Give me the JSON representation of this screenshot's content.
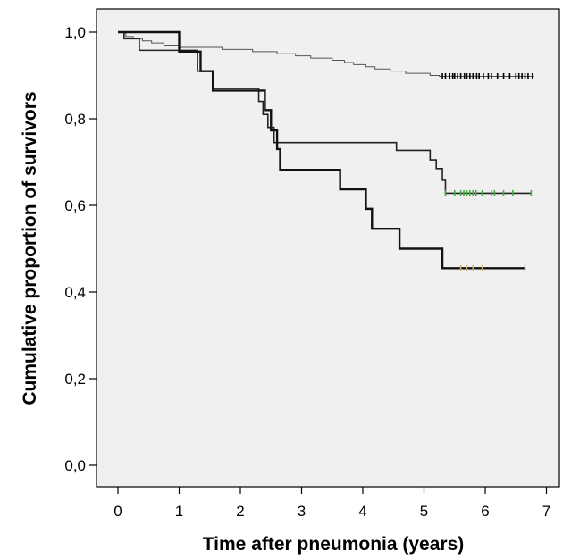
{
  "chart_data": {
    "type": "line",
    "title": "",
    "xlabel": "Time after pneumonia (years)",
    "ylabel": "Cumulative proportion of survivors",
    "xlim": [
      0,
      7
    ],
    "ylim": [
      0,
      1
    ],
    "x_ticks": [
      0,
      1,
      2,
      3,
      4,
      5,
      6,
      7
    ],
    "x_tick_labels": [
      "0",
      "1",
      "2",
      "3",
      "4",
      "5",
      "6",
      "7"
    ],
    "y_ticks": [
      0,
      0.2,
      0.4,
      0.6,
      0.8,
      1.0
    ],
    "y_tick_labels": [
      "0,0",
      "0,2",
      "0,4",
      "0,6",
      "0,8",
      "1,0"
    ],
    "grid": false,
    "background": "#f0f0f0",
    "series": [
      {
        "color": "#555555",
        "steps": [
          [
            0,
            1.0
          ],
          [
            0.13,
            0.99
          ],
          [
            0.25,
            0.985
          ],
          [
            0.4,
            0.98
          ],
          [
            0.55,
            0.975
          ],
          [
            0.75,
            0.97
          ],
          [
            1.0,
            0.965
          ],
          [
            1.7,
            0.96
          ],
          [
            2.2,
            0.955
          ],
          [
            2.6,
            0.95
          ],
          [
            2.9,
            0.945
          ],
          [
            3.15,
            0.94
          ],
          [
            3.5,
            0.935
          ],
          [
            3.7,
            0.93
          ],
          [
            3.85,
            0.925
          ],
          [
            4.05,
            0.92
          ],
          [
            4.2,
            0.915
          ],
          [
            4.45,
            0.91
          ],
          [
            4.7,
            0.905
          ],
          [
            5.1,
            0.9
          ],
          [
            5.25,
            0.898
          ]
        ],
        "end_x": 6.8,
        "censor_marks": [
          5.3,
          5.35,
          5.42,
          5.47,
          5.5,
          5.55,
          5.6,
          5.66,
          5.7,
          5.75,
          5.8,
          5.86,
          5.9,
          5.97,
          6.05,
          6.1,
          6.2,
          6.3,
          6.4,
          6.5,
          6.55,
          6.6,
          6.65,
          6.7,
          6.77
        ],
        "censor_color": "#000000"
      },
      {
        "color": "#222222",
        "steps": [
          [
            0,
            1.0
          ],
          [
            0.1,
            0.985
          ],
          [
            0.35,
            0.958
          ],
          [
            1.3,
            0.91
          ],
          [
            1.55,
            0.87
          ],
          [
            2.3,
            0.84
          ],
          [
            2.37,
            0.81
          ],
          [
            2.45,
            0.78
          ],
          [
            2.55,
            0.745
          ],
          [
            4.55,
            0.727
          ],
          [
            5.1,
            0.705
          ],
          [
            5.2,
            0.685
          ],
          [
            5.3,
            0.658
          ],
          [
            5.35,
            0.628
          ]
        ],
        "end_x": 6.75,
        "censor_marks": [
          5.35,
          5.5,
          5.6,
          5.65,
          5.7,
          5.75,
          5.8,
          5.85,
          5.95,
          6.1,
          6.15,
          6.3,
          6.45,
          6.75
        ],
        "censor_color": "#44aa44"
      },
      {
        "color": "#111111",
        "steps": [
          [
            0,
            1.0
          ],
          [
            1.0,
            0.955
          ],
          [
            1.35,
            0.91
          ],
          [
            1.55,
            0.865
          ],
          [
            2.4,
            0.82
          ],
          [
            2.5,
            0.773
          ],
          [
            2.6,
            0.73
          ],
          [
            2.65,
            0.682
          ],
          [
            3.63,
            0.637
          ],
          [
            4.05,
            0.592
          ],
          [
            4.15,
            0.546
          ],
          [
            4.6,
            0.5
          ],
          [
            5.3,
            0.455
          ]
        ],
        "end_x": 6.65,
        "censor_marks": [
          5.6,
          5.7,
          5.8,
          5.95,
          6.65
        ],
        "censor_color": "#c8b478"
      }
    ]
  }
}
